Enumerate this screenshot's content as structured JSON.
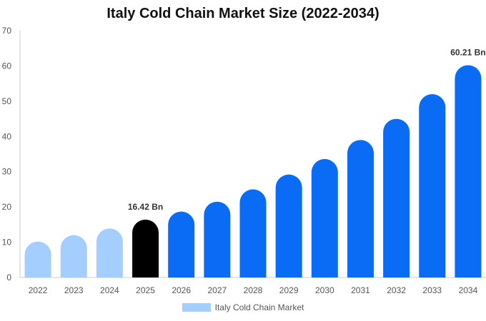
{
  "chart_data": {
    "type": "bar",
    "title": "Italy Cold Chain Market Size (2022-2034)",
    "categories": [
      "2022",
      "2023",
      "2024",
      "2025",
      "2026",
      "2027",
      "2028",
      "2029",
      "2030",
      "2031",
      "2032",
      "2033",
      "2034"
    ],
    "series": [
      {
        "name": "Italy Cold Chain Market",
        "values": [
          10.2,
          12.0,
          13.9,
          16.42,
          18.7,
          21.5,
          25.0,
          29.2,
          33.6,
          39.0,
          45.0,
          52.0,
          60.21
        ]
      }
    ],
    "ylim": [
      0,
      70
    ],
    "yticks": [
      0,
      10,
      20,
      30,
      40,
      50,
      60,
      70
    ],
    "data_labels": [
      {
        "index": 3,
        "text": "16.42 Bn"
      },
      {
        "index": 12,
        "text": "60.21 Bn"
      }
    ],
    "grid": false,
    "legend_position": "bottom-center",
    "colors": {
      "historical": "#a3cefd",
      "current": "#000000",
      "forecast": "#0a6cf5",
      "axis": "#cccccc",
      "tick_text": "#555555",
      "label_text": "#333333"
    },
    "period_breaks": {
      "current_index": 3
    }
  }
}
